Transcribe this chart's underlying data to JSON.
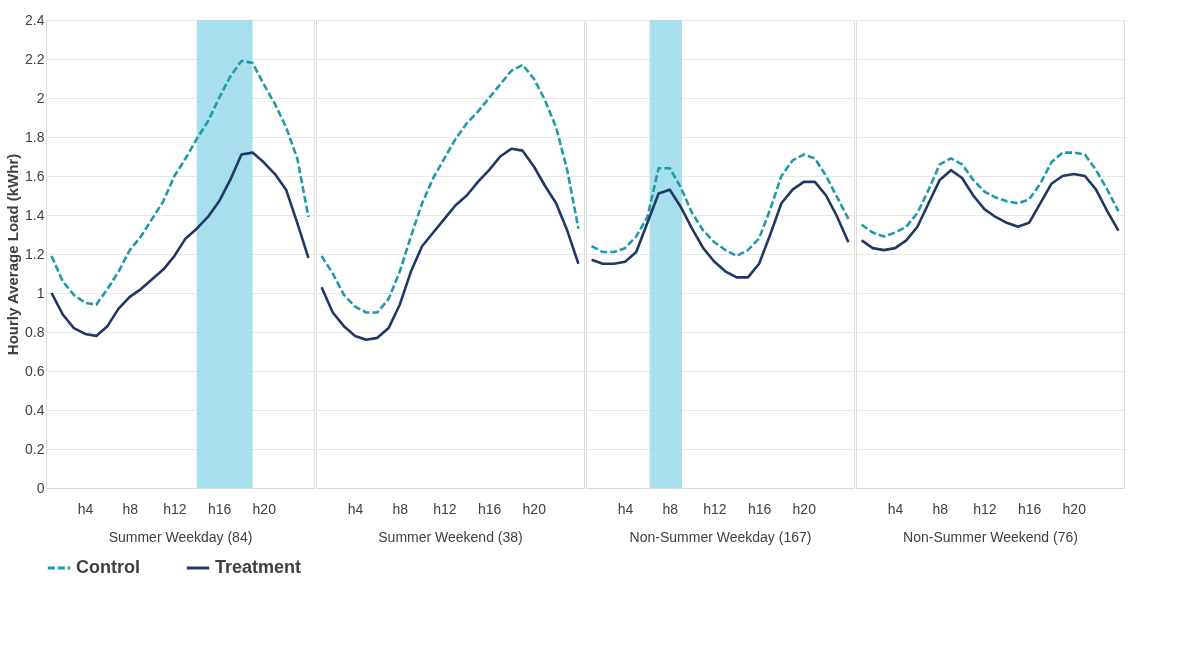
{
  "chart_data": [
    {
      "type": "line",
      "xlabel": "Summer Weekday (84)",
      "ylabel": "Hourly Average Load (kWhr)",
      "categories": [
        null,
        null,
        null,
        "h4",
        null,
        null,
        null,
        "h8",
        null,
        null,
        null,
        "h12",
        null,
        null,
        null,
        "h16",
        null,
        null,
        null,
        "h20",
        null,
        null,
        null,
        null
      ],
      "ylim": [
        0,
        2.4
      ],
      "yticks": [
        0,
        0.2,
        0.4,
        0.6,
        0.8,
        1,
        1.2,
        1.4,
        1.6,
        1.8,
        2,
        2.2,
        2.4
      ],
      "grid": "y",
      "legend": "bottom",
      "series": [
        {
          "name": "Control",
          "color": "#1f9aa8",
          "line_style": "dashed",
          "values": [
            1.19,
            1.06,
            0.99,
            0.95,
            0.94,
            1.02,
            1.11,
            1.22,
            1.29,
            1.38,
            1.47,
            1.6,
            1.69,
            1.79,
            1.88,
            2.0,
            2.11,
            2.19,
            2.18,
            2.07,
            1.97,
            1.85,
            1.69,
            1.39
          ]
        },
        {
          "name": "Treatment",
          "color": "#1f3864",
          "line_style": "solid",
          "values": [
            1.0,
            0.89,
            0.82,
            0.79,
            0.78,
            0.83,
            0.92,
            0.98,
            1.02,
            1.07,
            1.12,
            1.19,
            1.28,
            1.33,
            1.39,
            1.47,
            1.58,
            1.71,
            1.72,
            1.67,
            1.61,
            1.53,
            1.36,
            1.18
          ]
        }
      ]
    },
    {
      "type": "line",
      "xlabel": "Summer Weekend (38)",
      "categories": [
        null,
        null,
        null,
        "h4",
        null,
        null,
        null,
        "h8",
        null,
        null,
        null,
        "h12",
        null,
        null,
        null,
        "h16",
        null,
        null,
        null,
        "h20",
        null,
        null,
        null,
        null
      ],
      "ylim": [
        0,
        2.4
      ],
      "yticks": [
        0,
        0.2,
        0.4,
        0.6,
        0.8,
        1,
        1.2,
        1.4,
        1.6,
        1.8,
        2,
        2.2,
        2.4
      ],
      "grid": "y",
      "legend": "bottom",
      "tick_labels": "x",
      "series": [
        {
          "name": "Control",
          "color": "#1f9aa8",
          "line_style": "dashed",
          "values": [
            1.19,
            1.1,
            0.99,
            0.93,
            0.9,
            0.9,
            0.97,
            1.11,
            1.29,
            1.46,
            1.59,
            1.69,
            1.79,
            1.87,
            1.93,
            2.0,
            2.07,
            2.14,
            2.17,
            2.1,
            1.99,
            1.85,
            1.63,
            1.33
          ]
        },
        {
          "name": "Treatment",
          "color": "#1f3864",
          "line_style": "solid",
          "values": [
            1.03,
            0.9,
            0.83,
            0.78,
            0.76,
            0.77,
            0.82,
            0.94,
            1.11,
            1.24,
            1.31,
            1.38,
            1.45,
            1.5,
            1.57,
            1.63,
            1.7,
            1.74,
            1.73,
            1.65,
            1.55,
            1.46,
            1.32,
            1.15
          ]
        }
      ]
    },
    {
      "type": "line",
      "xlabel": "Non-Summer Weekday (167)",
      "categories": [
        null,
        null,
        null,
        "h4",
        null,
        null,
        null,
        "h8",
        null,
        null,
        null,
        "h12",
        null,
        null,
        null,
        "h16",
        null,
        null,
        null,
        "h20",
        null,
        null,
        null,
        null
      ],
      "ylim": [
        0,
        2.4
      ],
      "yticks": [
        0,
        0.2,
        0.4,
        0.6,
        0.8,
        1,
        1.2,
        1.4,
        1.6,
        1.8,
        2,
        2.2,
        2.4
      ],
      "grid": "y",
      "legend": "bottom",
      "tick_labels": "x",
      "series": [
        {
          "name": "Control",
          "color": "#1f9aa8",
          "line_style": "dashed",
          "values": [
            1.24,
            1.21,
            1.21,
            1.23,
            1.29,
            1.39,
            1.64,
            1.64,
            1.54,
            1.41,
            1.32,
            1.26,
            1.22,
            1.19,
            1.22,
            1.28,
            1.43,
            1.6,
            1.68,
            1.71,
            1.69,
            1.6,
            1.49,
            1.38
          ]
        },
        {
          "name": "Treatment",
          "color": "#1f3864",
          "line_style": "solid",
          "values": [
            1.17,
            1.15,
            1.15,
            1.16,
            1.21,
            1.36,
            1.51,
            1.53,
            1.44,
            1.33,
            1.23,
            1.16,
            1.11,
            1.08,
            1.08,
            1.15,
            1.3,
            1.46,
            1.53,
            1.57,
            1.57,
            1.5,
            1.39,
            1.26
          ]
        }
      ]
    },
    {
      "type": "line",
      "xlabel": "Non-Summer Weekend (76)",
      "categories": [
        null,
        null,
        null,
        "h4",
        null,
        null,
        null,
        "h8",
        null,
        null,
        null,
        "h12",
        null,
        null,
        null,
        "h16",
        null,
        null,
        null,
        "h20",
        null,
        null,
        null,
        null
      ],
      "ylim": [
        0,
        2.4
      ],
      "yticks": [
        0,
        0.2,
        0.4,
        0.6,
        0.8,
        1,
        1.2,
        1.4,
        1.6,
        1.8,
        2,
        2.2,
        2.4
      ],
      "grid": "y",
      "legend": "bottom",
      "tick_labels": "x",
      "series": [
        {
          "name": "Control",
          "color": "#1f9aa8",
          "line_style": "dashed",
          "values": [
            1.35,
            1.31,
            1.29,
            1.31,
            1.34,
            1.41,
            1.53,
            1.66,
            1.69,
            1.66,
            1.58,
            1.52,
            1.49,
            1.47,
            1.46,
            1.48,
            1.56,
            1.67,
            1.72,
            1.72,
            1.71,
            1.63,
            1.53,
            1.42
          ]
        },
        {
          "name": "Treatment",
          "color": "#1f3864",
          "line_style": "solid",
          "values": [
            1.27,
            1.23,
            1.22,
            1.23,
            1.27,
            1.34,
            1.46,
            1.58,
            1.63,
            1.59,
            1.5,
            1.43,
            1.39,
            1.36,
            1.34,
            1.36,
            1.46,
            1.56,
            1.6,
            1.61,
            1.6,
            1.53,
            1.42,
            1.32
          ]
        }
      ]
    }
  ]
}
